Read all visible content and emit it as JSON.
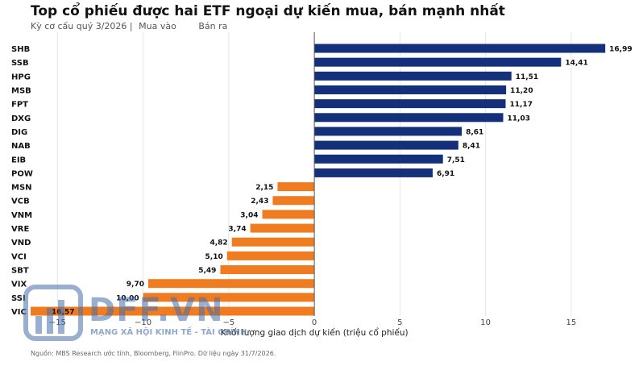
{
  "title": "Top cổ phiếu được hai ETF ngoại dự kiến mua, bán mạnh nhất",
  "subtitle": {
    "period": "Kỳ cơ cấu quý 3/2026 |",
    "buy_label": "Mua vào",
    "sell_label": "Bán ra"
  },
  "footer": "Nguồn: MBS Research ước tính, Bloomberg, FiinPro. Dữ liệu ngày 31/7/2026.",
  "watermark": {
    "brand": "DFF.VN",
    "tagline": "MẠNG XÃ HỘI KINH TẾ - TÀI CHÍNH"
  },
  "colors": {
    "buy": "#14307a",
    "sell": "#f07c22",
    "grid": "#e6e6e6",
    "axis": "#555555"
  },
  "chart_data": {
    "type": "bar",
    "orientation": "horizontal",
    "xlabel": "Khối lượng giao dịch dự kiến (triệu cổ phiếu)",
    "xlim": [
      -16.57,
      17.5
    ],
    "xticks": [
      -15,
      -10,
      -5,
      0,
      5,
      10,
      15
    ],
    "xtick_labels": [
      "−15",
      "−10",
      "−5",
      "0",
      "5",
      "10",
      "15"
    ],
    "grid": true,
    "categories": [
      "SHB",
      "SSB",
      "HPG",
      "MSB",
      "FPT",
      "DXG",
      "DIG",
      "NAB",
      "EIB",
      "POW",
      "MSN",
      "VCB",
      "VNM",
      "VRE",
      "VND",
      "VCI",
      "SBT",
      "VIX",
      "SSI",
      "VIC"
    ],
    "values": [
      16.99,
      14.41,
      11.51,
      11.2,
      11.17,
      11.03,
      8.61,
      8.41,
      7.51,
      6.91,
      -2.15,
      -2.43,
      -3.04,
      -3.74,
      -4.82,
      -5.1,
      -5.49,
      -9.7,
      -10.0,
      -16.57
    ],
    "value_labels": [
      "16,99",
      "14,41",
      "11,51",
      "11,20",
      "11,17",
      "11,03",
      "8,61",
      "8,41",
      "7,51",
      "6,91",
      "2,15",
      "2,43",
      "3,04",
      "3,74",
      "4,82",
      "5,10",
      "5,49",
      "9,70",
      "10,00",
      "16,57"
    ]
  }
}
